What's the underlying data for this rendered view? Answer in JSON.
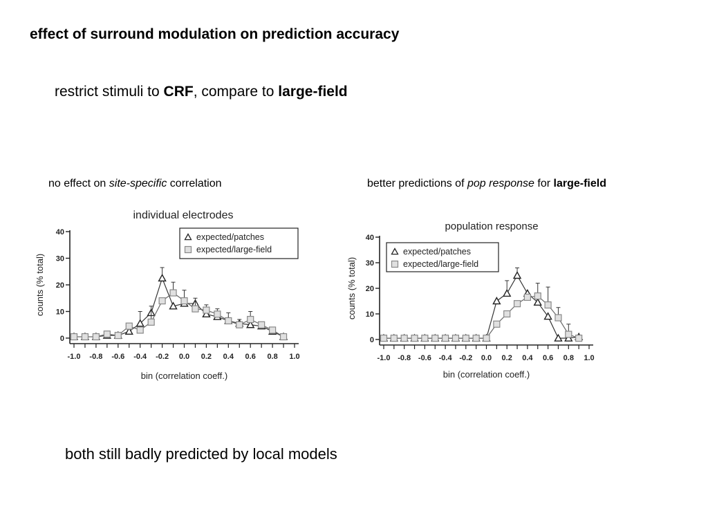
{
  "slide": {
    "title": "effect of surround modulation on prediction accuracy",
    "subtitle": {
      "pre": "restrict stimuli to ",
      "b1": "CRF",
      "mid": ", compare to ",
      "b2": "large-field"
    },
    "caption_left": {
      "pre": "no effect on ",
      "em": "site-specific",
      "post": " correlation"
    },
    "caption_right": {
      "pre": "better predictions of ",
      "em": "pop response",
      "mid": " for ",
      "b": "large-field"
    },
    "footer": "both still badly predicted by local models"
  },
  "colors": {
    "patches": "#333333",
    "large_field": "#aaaaaa",
    "axis": "#222222"
  },
  "chart_data": [
    {
      "type": "line",
      "title": "individual electrodes",
      "xlabel": "bin (correlation coeff.)",
      "ylabel": "counts (% total)",
      "x": [
        -1.0,
        -0.9,
        -0.8,
        -0.7,
        -0.6,
        -0.5,
        -0.4,
        -0.3,
        -0.2,
        -0.1,
        0.0,
        0.1,
        0.2,
        0.3,
        0.4,
        0.5,
        0.6,
        0.7,
        0.8,
        0.9,
        1.0
      ],
      "xticks": [
        "-1.0",
        "-0.8",
        "-0.6",
        "-0.4",
        "-0.2",
        "0.0",
        "0.2",
        "0.4",
        "0.6",
        "0.8",
        "1.0"
      ],
      "yticks": [
        "0",
        "10",
        "20",
        "30",
        "40"
      ],
      "ylim": [
        0,
        40
      ],
      "legend_position": "top-right",
      "series": [
        {
          "name": "expected/patches",
          "marker": "triangle",
          "values": [
            0.5,
            0.5,
            0.5,
            1.0,
            1.0,
            2.5,
            5.5,
            9.5,
            22.5,
            12.0,
            13.0,
            13.0,
            9.0,
            8.0,
            6.5,
            5.5,
            5.0,
            4.5,
            2.5,
            0.5,
            null
          ],
          "errors": [
            0,
            0,
            0,
            0,
            0,
            0,
            4.5,
            0,
            4.0,
            0,
            0,
            0,
            0,
            0,
            0,
            0,
            0,
            0,
            0,
            0,
            null
          ]
        },
        {
          "name": "expected/large-field",
          "marker": "square",
          "values": [
            0.5,
            0.5,
            0.5,
            1.5,
            1.0,
            4.5,
            3.0,
            6.0,
            14.0,
            17.0,
            14.0,
            11.0,
            10.5,
            9.0,
            6.5,
            5.0,
            7.0,
            5.0,
            3.0,
            0.5,
            null
          ],
          "errors": [
            0,
            0,
            1.0,
            1.0,
            1.0,
            0,
            0,
            6.0,
            0,
            4.0,
            4.0,
            4.0,
            2.0,
            2.0,
            3.0,
            2.0,
            3.0,
            0,
            0,
            0,
            null
          ]
        }
      ]
    },
    {
      "type": "line",
      "title": "population response",
      "xlabel": "bin (correlation coeff.)",
      "ylabel": "counts (% total)",
      "x": [
        -1.0,
        -0.9,
        -0.8,
        -0.7,
        -0.6,
        -0.5,
        -0.4,
        -0.3,
        -0.2,
        -0.1,
        0.0,
        0.1,
        0.2,
        0.3,
        0.4,
        0.5,
        0.6,
        0.7,
        0.8,
        0.9,
        1.0
      ],
      "xticks": [
        "-1.0",
        "-0.8",
        "-0.6",
        "-0.4",
        "-0.2",
        "0.0",
        "0.2",
        "0.4",
        "0.6",
        "0.8",
        "1.0"
      ],
      "yticks": [
        "0",
        "10",
        "20",
        "30",
        "40"
      ],
      "ylim": [
        0,
        40
      ],
      "legend_position": "top-left",
      "series": [
        {
          "name": "expected/patches",
          "marker": "triangle",
          "values": [
            0.5,
            0.5,
            0.5,
            0.5,
            0.5,
            0.5,
            0.5,
            0.5,
            0.5,
            0.5,
            0.5,
            15.0,
            18.0,
            25.0,
            18.0,
            14.5,
            9.0,
            0.5,
            0.5,
            1.0,
            null
          ],
          "errors": [
            0,
            0,
            0,
            0,
            0,
            0,
            0,
            0,
            0,
            0,
            0,
            0,
            5.0,
            3.0,
            0,
            0,
            0,
            0,
            0,
            0,
            null
          ]
        },
        {
          "name": "expected/large-field",
          "marker": "square",
          "values": [
            0.5,
            0.5,
            0.5,
            0.5,
            0.5,
            0.5,
            0.5,
            0.5,
            0.5,
            0.5,
            0.5,
            6.0,
            10.0,
            14.0,
            16.5,
            17.0,
            13.5,
            8.5,
            2.0,
            0.5,
            null
          ],
          "errors": [
            0,
            0,
            0,
            0,
            0,
            0,
            0,
            0,
            0,
            0,
            0,
            0,
            0,
            0,
            0,
            5.0,
            7.0,
            4.0,
            4.0,
            0,
            null
          ]
        }
      ]
    }
  ]
}
